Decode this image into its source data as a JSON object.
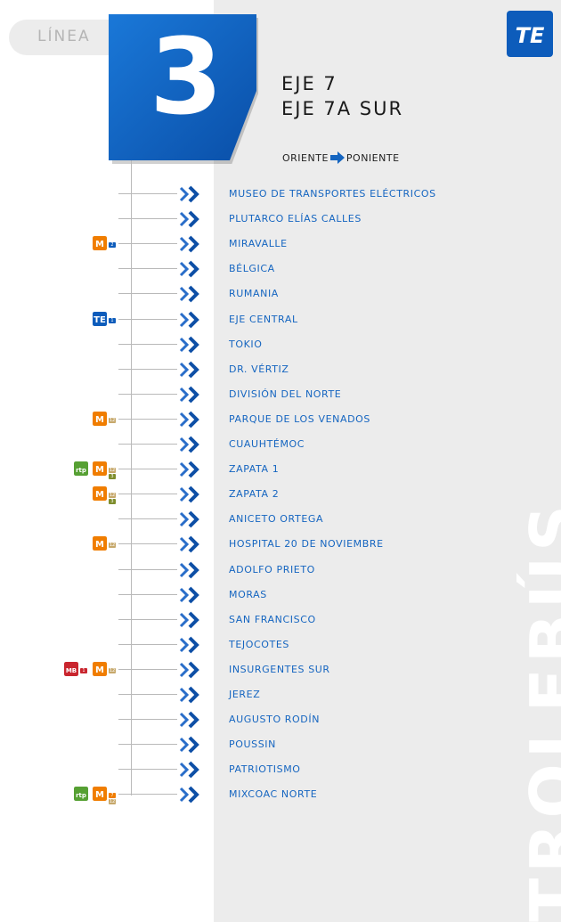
{
  "header": {
    "line_label": "LÍNEA",
    "line_number": "3",
    "route_title_line1": "EJE 7",
    "route_title_line2": "EJE 7A SUR",
    "direction_from": "ORIENTE",
    "direction_to": "PONIENTE"
  },
  "brand": {
    "logo_text": "TE",
    "watermark": "TROLEBÚS",
    "colors": {
      "blue": "#0d5cbb",
      "metro_orange": "#f07d00",
      "metro_red": "#d8262c",
      "metrobus_red": "#c9252e",
      "rtp_green": "#56a033",
      "te_blue": "#0d5cbb",
      "text_blue": "#1565c0"
    }
  },
  "stops": [
    {
      "name": "MUSEO DE TRANSPORTES ELÉCTRICOS",
      "connections": []
    },
    {
      "name": "PLUTARCO ELÍAS CALLES",
      "connections": []
    },
    {
      "name": "MIRAVALLE",
      "connections": [
        {
          "type": "metro",
          "color": "#f07d00",
          "lines": [
            "2"
          ],
          "line_colors": [
            "#0d5cbb"
          ]
        }
      ]
    },
    {
      "name": "BÉLGICA",
      "connections": []
    },
    {
      "name": "RUMANIA",
      "connections": []
    },
    {
      "name": "EJE CENTRAL",
      "connections": [
        {
          "type": "trolebus",
          "color": "#0d5cbb",
          "lines": [
            "1"
          ],
          "line_colors": [
            "#0d5cbb"
          ]
        }
      ]
    },
    {
      "name": "TOKIO",
      "connections": []
    },
    {
      "name": "DR. VÉRTIZ",
      "connections": []
    },
    {
      "name": "DIVISIÓN DEL NORTE",
      "connections": []
    },
    {
      "name": "PARQUE DE LOS VENADOS",
      "connections": [
        {
          "type": "metro",
          "color": "#f07d00",
          "lines": [
            "12"
          ],
          "line_colors": [
            "#c6a86b"
          ]
        }
      ]
    },
    {
      "name": "CUAUHTÉMOC",
      "connections": []
    },
    {
      "name": "ZAPATA 1",
      "connections": [
        {
          "type": "rtp",
          "color": "#56a033",
          "lines": [],
          "line_colors": []
        },
        {
          "type": "metro",
          "color": "#f07d00",
          "lines": [
            "12",
            "3"
          ],
          "line_colors": [
            "#c6a86b",
            "#7e8d2c"
          ]
        }
      ]
    },
    {
      "name": "ZAPATA 2",
      "connections": [
        {
          "type": "metro",
          "color": "#f07d00",
          "lines": [
            "12",
            "3"
          ],
          "line_colors": [
            "#c6a86b",
            "#7e8d2c"
          ]
        }
      ]
    },
    {
      "name": "ANICETO ORTEGA",
      "connections": []
    },
    {
      "name": "HOSPITAL 20 DE NOVIEMBRE",
      "connections": [
        {
          "type": "metro",
          "color": "#f07d00",
          "lines": [
            "12"
          ],
          "line_colors": [
            "#c6a86b"
          ]
        }
      ]
    },
    {
      "name": "ADOLFO PRIETO",
      "connections": []
    },
    {
      "name": "MORAS",
      "connections": []
    },
    {
      "name": "SAN FRANCISCO",
      "connections": []
    },
    {
      "name": "TEJOCOTES",
      "connections": []
    },
    {
      "name": "INSURGENTES SUR",
      "connections": [
        {
          "type": "metrobus",
          "color": "#c9252e",
          "lines": [
            "1"
          ],
          "line_colors": [
            "#c9252e"
          ]
        },
        {
          "type": "metro",
          "color": "#f07d00",
          "lines": [
            "12"
          ],
          "line_colors": [
            "#c6a86b"
          ]
        }
      ]
    },
    {
      "name": "JEREZ",
      "connections": []
    },
    {
      "name": "AUGUSTO RODÍN",
      "connections": []
    },
    {
      "name": "POUSSIN",
      "connections": []
    },
    {
      "name": "PATRIOTISMO",
      "connections": []
    },
    {
      "name": "MIXCOAC NORTE",
      "connections": [
        {
          "type": "rtp",
          "color": "#56a033",
          "lines": [],
          "line_colors": []
        },
        {
          "type": "metro",
          "color": "#f07d00",
          "lines": [
            "7",
            "12"
          ],
          "line_colors": [
            "#f07d00",
            "#c6a86b"
          ]
        }
      ]
    }
  ]
}
